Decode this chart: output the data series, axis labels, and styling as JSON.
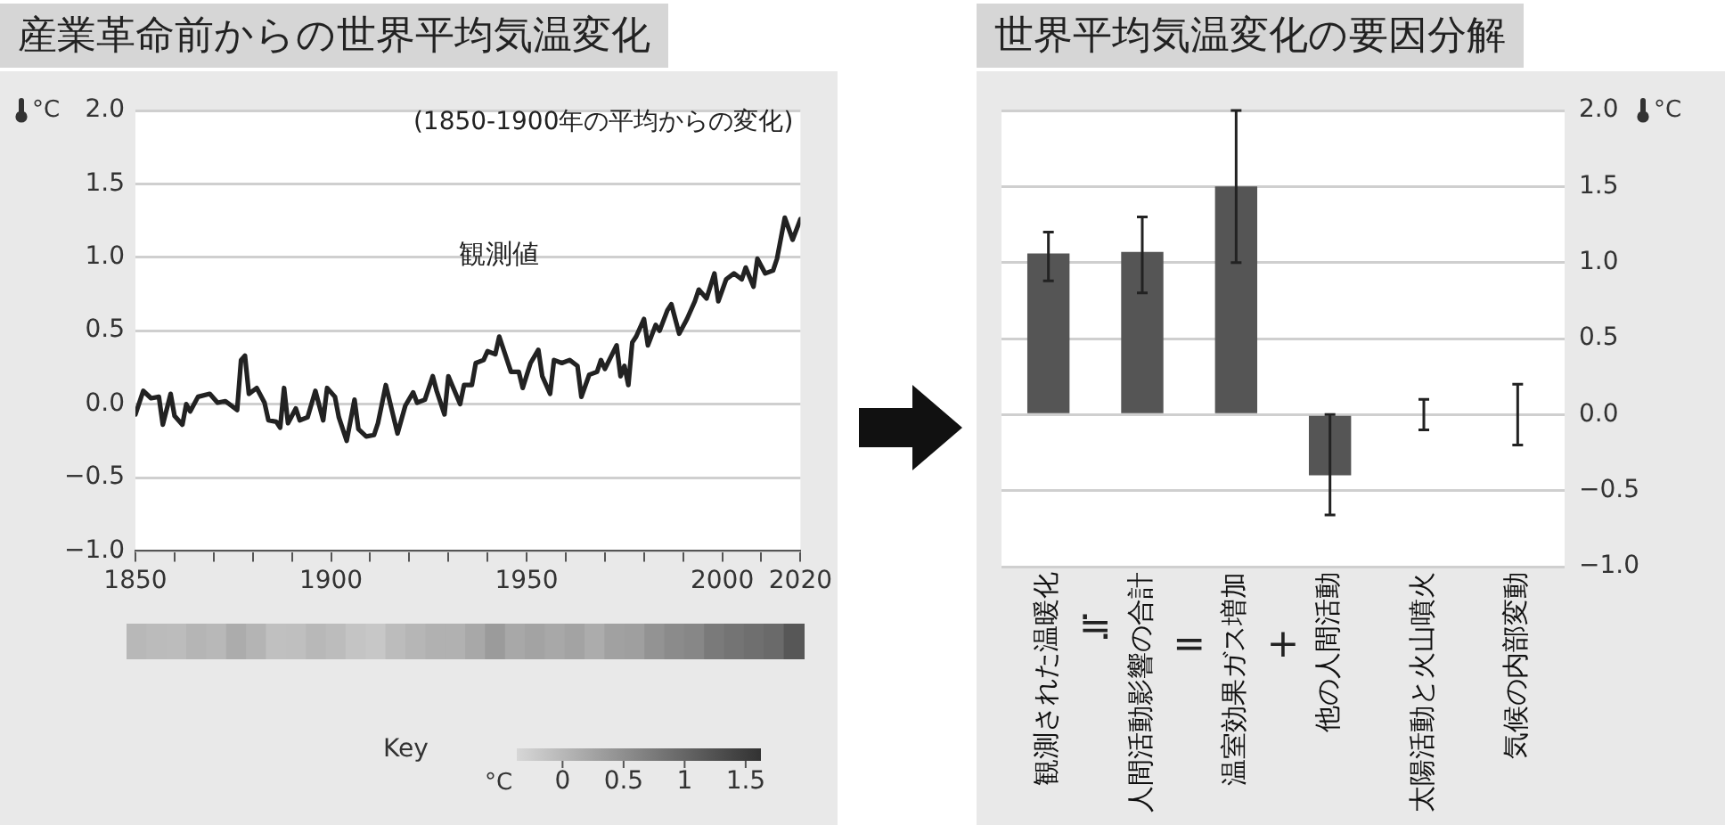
{
  "chart_data": [
    {
      "type": "line",
      "title": "産業革命前からの世界平均気温変化",
      "subtitle": "(1850-1900年の平均からの変化)",
      "ylabel": "°C",
      "series": [
        {
          "name": "観測値",
          "color": "#222222",
          "x": [
            1850,
            1852,
            1854,
            1856,
            1857,
            1859,
            1860,
            1862,
            1863,
            1864,
            1866,
            1869,
            1871,
            1873,
            1876,
            1877,
            1878,
            1879,
            1881,
            1883,
            1884,
            1886,
            1887,
            1888,
            1889,
            1891,
            1892,
            1894,
            1896,
            1897,
            1898,
            1899,
            1901,
            1902,
            1904,
            1906,
            1907,
            1909,
            1911,
            1912,
            1914,
            1917,
            1919,
            1921,
            1922,
            1924,
            1926,
            1927,
            1929,
            1930,
            1933,
            1934,
            1936,
            1937,
            1939,
            1940,
            1942,
            1943,
            1946,
            1948,
            1949,
            1951,
            1953,
            1954,
            1956,
            1957,
            1959,
            1961,
            1963,
            1964,
            1966,
            1968,
            1969,
            1970,
            1973,
            1974,
            1975,
            1976,
            1977,
            1978,
            1980,
            1981,
            1983,
            1984,
            1986,
            1987,
            1989,
            1991,
            1993,
            1994,
            1996,
            1998,
            1999,
            2001,
            2003,
            2005,
            2006,
            2008,
            2009,
            2011,
            2013,
            2014,
            2016,
            2018,
            2020
          ],
          "values": [
            -0.07,
            0.09,
            0.04,
            0.05,
            -0.14,
            0.07,
            -0.08,
            -0.14,
            0,
            -0.05,
            0.05,
            0.07,
            0.01,
            0.02,
            -0.04,
            0.3,
            0.33,
            0.07,
            0.11,
            0.01,
            -0.11,
            -0.12,
            -0.16,
            0.11,
            -0.13,
            -0.03,
            -0.11,
            -0.09,
            0.09,
            -0.01,
            -0.11,
            0.11,
            0.05,
            -0.09,
            -0.25,
            0.03,
            -0.17,
            -0.22,
            -0.21,
            -0.13,
            0.13,
            -0.2,
            -0.01,
            0.08,
            0.01,
            0.03,
            0.19,
            0.09,
            -0.07,
            0.19,
            0,
            0.13,
            0.13,
            0.28,
            0.3,
            0.36,
            0.34,
            0.46,
            0.22,
            0.22,
            0.11,
            0.28,
            0.37,
            0.19,
            0.07,
            0.3,
            0.28,
            0.3,
            0.26,
            0.05,
            0.2,
            0.22,
            0.3,
            0.24,
            0.4,
            0.19,
            0.26,
            0.13,
            0.42,
            0.46,
            0.58,
            0.4,
            0.54,
            0.5,
            0.64,
            0.68,
            0.48,
            0.58,
            0.7,
            0.78,
            0.72,
            0.89,
            0.7,
            0.85,
            0.89,
            0.85,
            0.93,
            0.8,
            0.99,
            0.89,
            0.91,
            0.99,
            1.27,
            1.12,
            1.26
          ]
        }
      ],
      "xlim": [
        1850,
        2020
      ],
      "xticks": [
        1850,
        {
          "value": 1860,
          "label": null
        },
        {
          "value": 1870,
          "label": null
        },
        {
          "value": 1880,
          "label": null
        },
        {
          "value": 1890,
          "label": null
        },
        1900,
        {
          "value": 1910,
          "label": null
        },
        {
          "value": 1920,
          "label": null
        },
        {
          "value": 1930,
          "label": null
        },
        {
          "value": 1940,
          "label": null
        },
        1950,
        {
          "value": 1960,
          "label": null
        },
        {
          "value": 1970,
          "label": null
        },
        {
          "value": 1980,
          "label": null
        },
        {
          "value": 1990,
          "label": null
        },
        2000,
        {
          "value": 2010,
          "label": null
        },
        2020
      ],
      "ylim": [
        -1,
        2
      ],
      "yticks": [
        {
          "value": -1,
          "label": "−1.0"
        },
        {
          "value": -0.5,
          "label": "−0.5"
        },
        {
          "value": 0,
          "label": "0.0"
        },
        {
          "value": 0.5,
          "label": "0.5"
        },
        {
          "value": 1,
          "label": "1.0"
        },
        {
          "value": 1.5,
          "label": "1.5"
        },
        {
          "value": 2,
          "label": "2.0"
        }
      ],
      "grid": "y",
      "line_style": "solid"
    },
    {
      "type": "heatmap",
      "categories": [
        null,
        null,
        null,
        null,
        null,
        null,
        null,
        null,
        null,
        null,
        null,
        null,
        null,
        null,
        null,
        null,
        null,
        null,
        null,
        null,
        null,
        null,
        null,
        null,
        null,
        null,
        null,
        null,
        null,
        null,
        null,
        null,
        null,
        null
      ],
      "y_categories": [
        null
      ],
      "cells": [
        [
          0.0,
          -0.03,
          -0.05,
          0.04,
          0.0,
          0.15,
          0.05,
          -0.1,
          -0.08,
          0.0,
          -0.05,
          -0.15,
          -0.18,
          -0.05,
          0.02,
          0.08,
          0.08,
          0.2,
          0.35,
          0.2,
          0.25,
          0.2,
          0.25,
          0.15,
          0.28,
          0.3,
          0.45,
          0.55,
          0.6,
          0.75,
          0.82,
          0.88,
          0.95,
          1.18
        ]
      ],
      "clim": [
        -0.375,
        1.625
      ],
      "cticks": [
        0,
        0.5,
        1,
        1.5
      ],
      "legend_title": "Key",
      "clabel": "°C",
      "tick_labels": false
    },
    {
      "type": "bar",
      "title": "世界平均気温変化の要因分解",
      "ylabel": "°C",
      "categories": [
        "観測された温暖化",
        "人間活動影響の合計",
        "温室効果ガス増加",
        "他の人間活動",
        "太陽活動と火山噴火",
        "気候の内部変動"
      ],
      "values": [
        1.06,
        1.07,
        1.5,
        -0.4,
        0,
        0
      ],
      "errors": [
        [
          0.88,
          1.2
        ],
        [
          0.8,
          1.3
        ],
        [
          1.0,
          2.0
        ],
        [
          -0.66,
          0
        ],
        [
          -0.1,
          0.1
        ],
        [
          -0.2,
          0.2
        ]
      ],
      "color": "#555555",
      "ylim": [
        -1,
        2
      ],
      "yticks": [
        {
          "value": -1,
          "label": "−1.0"
        },
        {
          "value": -0.5,
          "label": "−0.5"
        },
        {
          "value": 0,
          "label": "0.0"
        },
        {
          "value": 0.5,
          "label": "0.5"
        },
        {
          "value": 1,
          "label": "1.0"
        },
        {
          "value": 1.5,
          "label": "1.5"
        },
        {
          "value": 2,
          "label": "2.0"
        }
      ],
      "grid": "y",
      "annotations": [
        "≒",
        "=",
        "+"
      ]
    }
  ]
}
